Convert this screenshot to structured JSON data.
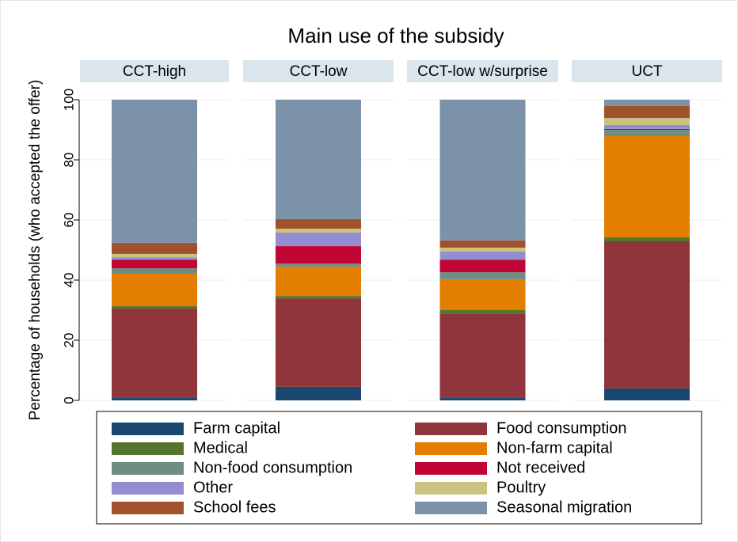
{
  "chart_data": {
    "type": "bar",
    "stacked": true,
    "title": "Main use of the subsidy",
    "y_label": "Percentage of households (who accepted the offer)",
    "categories": [
      "CCT-high",
      "CCT-low",
      "CCT-low w/surprise",
      "UCT"
    ],
    "ylim": [
      0,
      100
    ],
    "yticks": [
      0,
      20,
      40,
      60,
      80,
      100
    ],
    "grid": true,
    "series": [
      {
        "name": "Farm capital",
        "color": "#1a476f",
        "values": [
          1.0,
          4.5,
          1.0,
          4.0
        ]
      },
      {
        "name": "Food consumption",
        "color": "#90353b",
        "values": [
          29.5,
          29.4,
          27.7,
          48.9
        ]
      },
      {
        "name": "Medical",
        "color": "#55752f",
        "values": [
          0.8,
          0.8,
          1.3,
          1.3
        ]
      },
      {
        "name": "Non-farm capital",
        "color": "#e37e00",
        "values": [
          10.8,
          9.8,
          10.3,
          33.7
        ]
      },
      {
        "name": "Non-food consumption",
        "color": "#6e8e84",
        "values": [
          1.8,
          1.0,
          2.3,
          2.1
        ]
      },
      {
        "name": "Not received",
        "color": "#c10534",
        "values": [
          2.9,
          5.8,
          4.2,
          0.3
        ]
      },
      {
        "name": "Other",
        "color": "#938dd2",
        "values": [
          0.8,
          4.5,
          2.7,
          1.3
        ]
      },
      {
        "name": "Poultry",
        "color": "#cac27e",
        "values": [
          1.1,
          1.3,
          1.3,
          2.3
        ]
      },
      {
        "name": "School fees",
        "color": "#a0522d",
        "values": [
          3.7,
          3.2,
          2.4,
          4.0
        ]
      },
      {
        "name": "Seasonal migration",
        "color": "#7b92a8",
        "values": [
          47.6,
          39.7,
          46.8,
          2.1
        ]
      }
    ]
  }
}
